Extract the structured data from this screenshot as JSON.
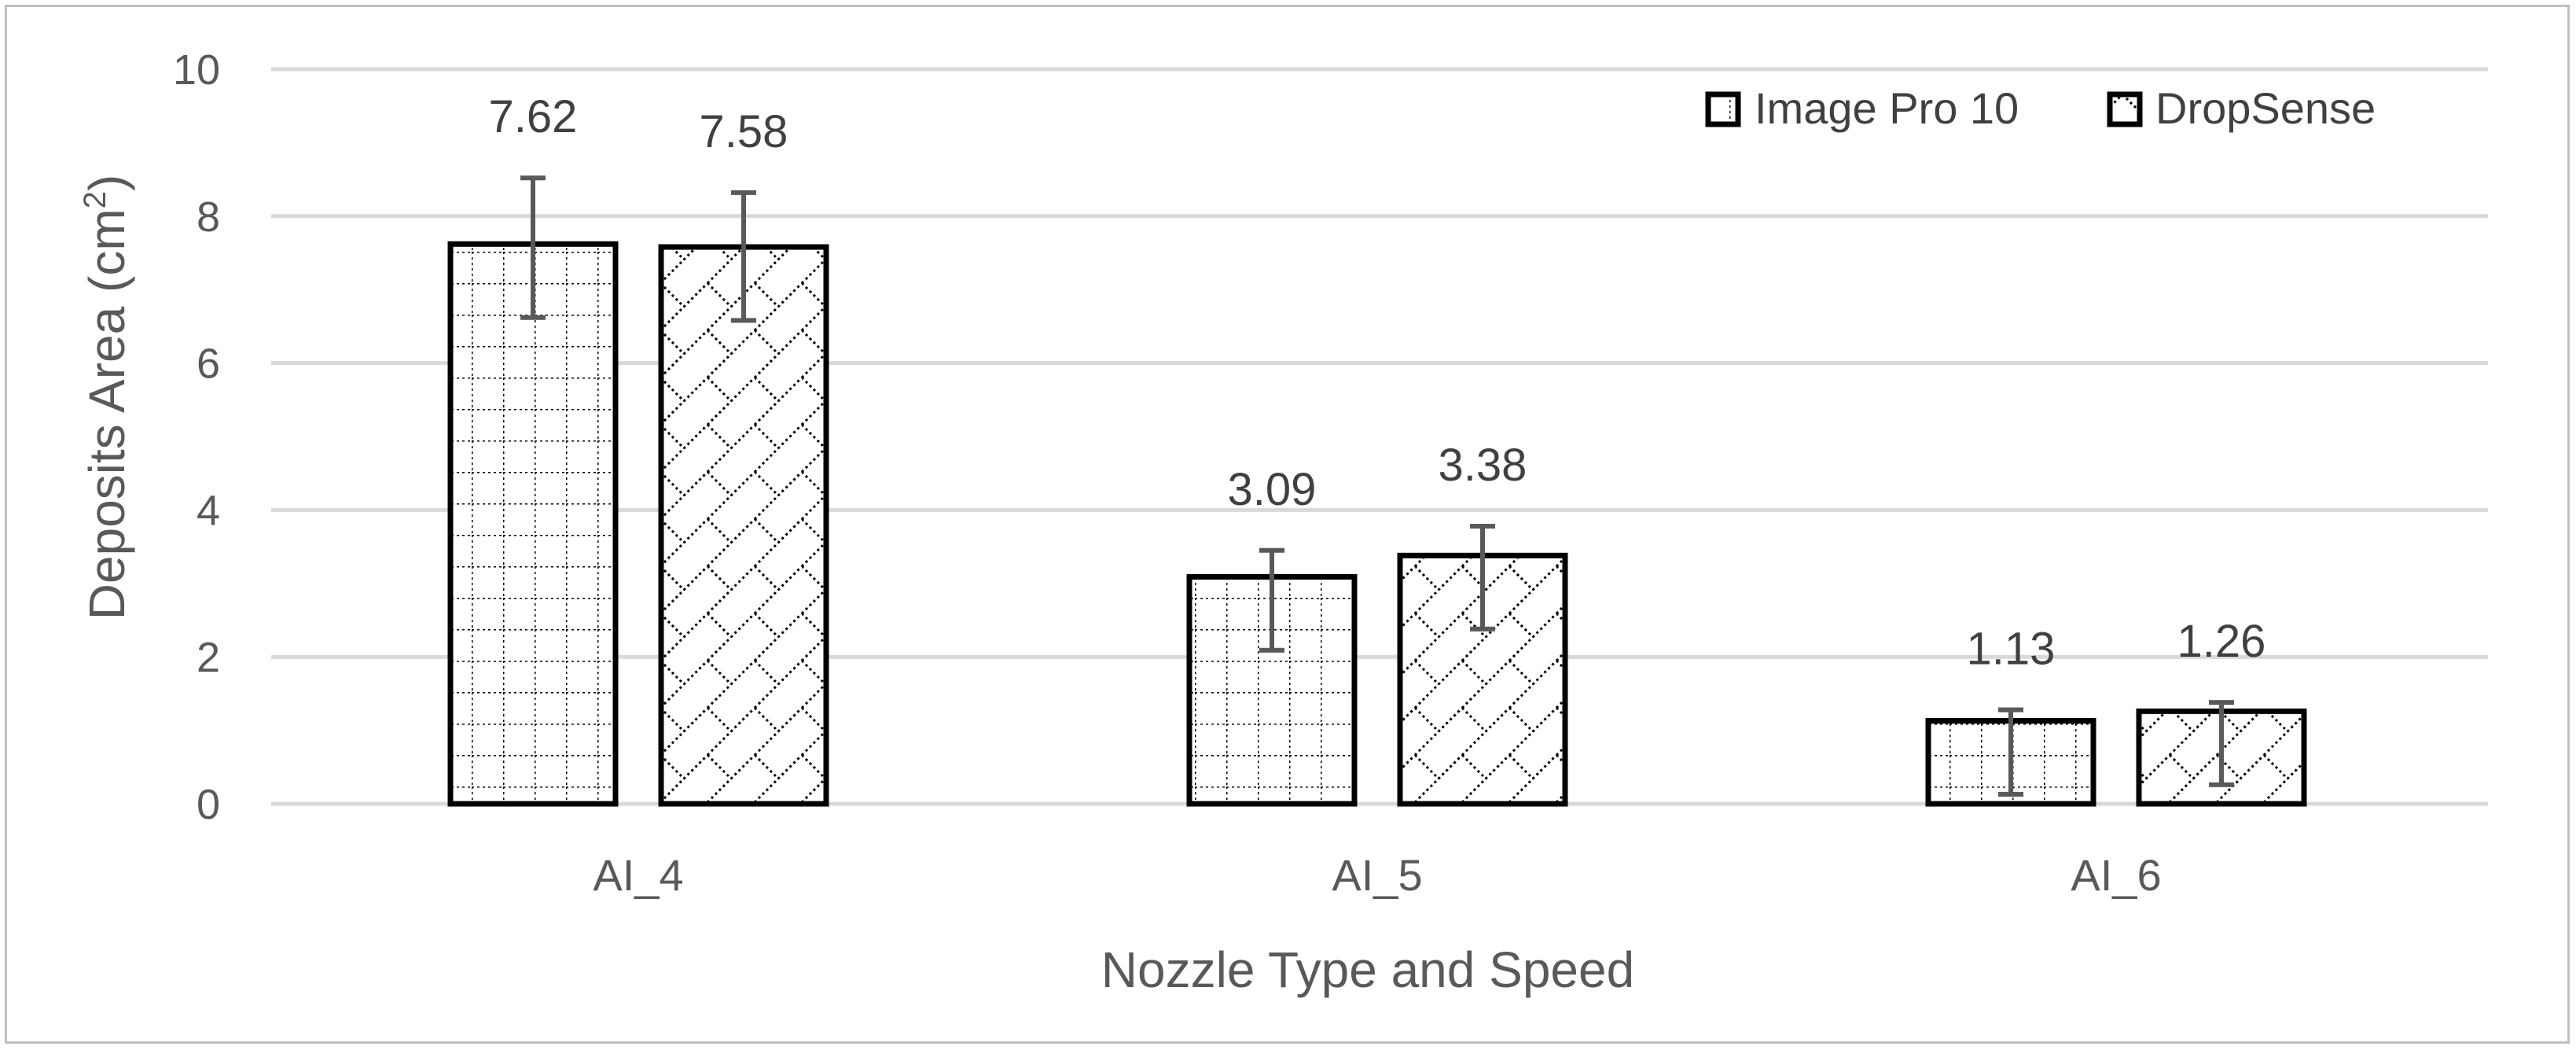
{
  "colors": {
    "gridline": "#d9d9d9",
    "bar_outline": "#000000",
    "error_bar": "#595959",
    "text": "#595959"
  },
  "chart_data": {
    "type": "bar",
    "title": "",
    "xlabel": "Nozzle Type and Speed",
    "ylabel_main": "Deposits Area (cm",
    "ylabel_sup": "2",
    "ylabel_close": ")",
    "ylim": [
      0,
      10
    ],
    "yticks": [
      0,
      2,
      4,
      6,
      8,
      10
    ],
    "grid": true,
    "legend_position": "top-right",
    "categories": [
      "AI_4",
      "AI_5",
      "AI_6"
    ],
    "series": [
      {
        "name": "Image Pro 10",
        "pattern": "grid-dotted",
        "values": [
          7.62,
          3.09,
          1.13
        ],
        "data_labels": [
          "7.62",
          "3.09",
          "1.13"
        ],
        "error_low": [
          6.62,
          2.09,
          0.13
        ],
        "error_high": [
          8.52,
          3.45,
          1.28
        ]
      },
      {
        "name": "DropSense",
        "pattern": "diagonal-dotted",
        "values": [
          7.58,
          3.38,
          1.26
        ],
        "data_labels": [
          "7.58",
          "3.38",
          "1.26"
        ],
        "error_low": [
          6.58,
          2.38,
          0.26
        ],
        "error_high": [
          8.32,
          3.78,
          1.38
        ]
      }
    ]
  }
}
